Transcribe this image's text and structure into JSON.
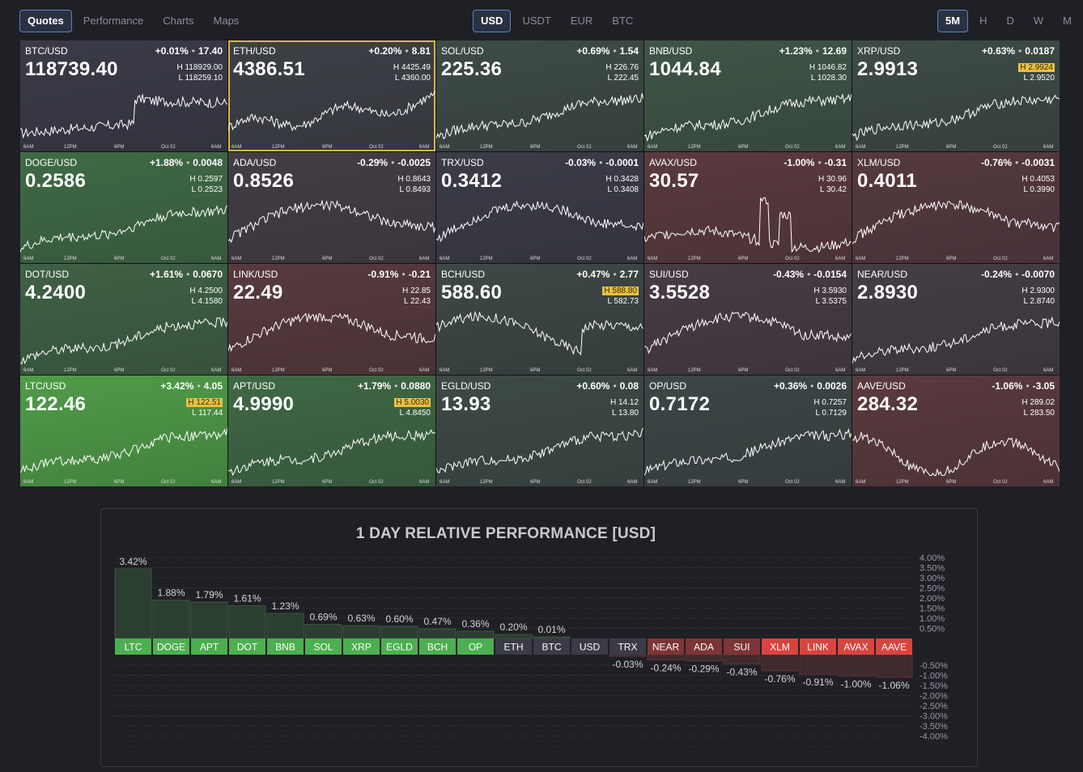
{
  "nav": {
    "views": [
      {
        "label": "Quotes",
        "active": true
      },
      {
        "label": "Performance",
        "active": false
      },
      {
        "label": "Charts",
        "active": false
      },
      {
        "label": "Maps",
        "active": false
      }
    ],
    "currencies": [
      {
        "label": "USD",
        "active": true
      },
      {
        "label": "USDT",
        "active": false
      },
      {
        "label": "EUR",
        "active": false
      },
      {
        "label": "BTC",
        "active": false
      }
    ],
    "timeframes": [
      {
        "label": "5M",
        "active": true
      },
      {
        "label": "H",
        "active": false
      },
      {
        "label": "D",
        "active": false
      },
      {
        "label": "W",
        "active": false
      },
      {
        "label": "M",
        "active": false
      }
    ]
  },
  "tile_axis_labels": [
    "6AM",
    "12PM",
    "6PM",
    "Oct 02",
    "6AM"
  ],
  "tiles": [
    {
      "symbol": "BTC/USD",
      "price": "118739.40",
      "change_pct": "+0.01%",
      "change": "17.40",
      "high": "118929.00",
      "low": "118259.10",
      "high_flag": false,
      "pct": 0.01,
      "bg": "#3a3b47",
      "selected": false,
      "shape": "btc"
    },
    {
      "symbol": "ETH/USD",
      "price": "4386.51",
      "change_pct": "+0.20%",
      "change": "8.81",
      "high": "4425.49",
      "low": "4360.00",
      "high_flag": false,
      "pct": 0.2,
      "bg": "#3d4046",
      "selected": true,
      "shape": "eth"
    },
    {
      "symbol": "SOL/USD",
      "price": "225.36",
      "change_pct": "+0.69%",
      "change": "1.54",
      "high": "226.76",
      "low": "222.45",
      "high_flag": false,
      "pct": 0.69,
      "bg": "#3e4b46",
      "selected": false,
      "shape": "rise"
    },
    {
      "symbol": "BNB/USD",
      "price": "1044.84",
      "change_pct": "+1.23%",
      "change": "12.69",
      "high": "1046.82",
      "low": "1028.30",
      "high_flag": false,
      "pct": 1.23,
      "bg": "#3f5546",
      "selected": false,
      "shape": "rise"
    },
    {
      "symbol": "XRP/USD",
      "price": "2.9913",
      "change_pct": "+0.63%",
      "change": "0.0187",
      "high": "2.9924",
      "low": "2.9520",
      "high_flag": true,
      "pct": 0.63,
      "bg": "#3e4b46",
      "selected": false,
      "shape": "rise"
    },
    {
      "symbol": "DOGE/USD",
      "price": "0.2586",
      "change_pct": "+1.88%",
      "change": "0.0048",
      "high": "0.2597",
      "low": "0.2523",
      "high_flag": false,
      "pct": 1.88,
      "bg": "#3f6a45",
      "selected": false,
      "shape": "rise"
    },
    {
      "symbol": "ADA/USD",
      "price": "0.8526",
      "change_pct": "-0.29%",
      "change": "-0.0025",
      "high": "0.8643",
      "low": "0.8493",
      "high_flag": false,
      "pct": -0.29,
      "bg": "#453d45",
      "selected": false,
      "shape": "hump"
    },
    {
      "symbol": "TRX/USD",
      "price": "0.3412",
      "change_pct": "-0.03%",
      "change": "-0.0001",
      "high": "0.3428",
      "low": "0.3408",
      "high_flag": false,
      "pct": -0.03,
      "bg": "#3b3c47",
      "selected": false,
      "shape": "hump"
    },
    {
      "symbol": "AVAX/USD",
      "price": "30.57",
      "change_pct": "-1.00%",
      "change": "-0.31",
      "high": "30.96",
      "low": "30.42",
      "high_flag": false,
      "pct": -1.0,
      "bg": "#5a3a3e",
      "selected": false,
      "shape": "spike"
    },
    {
      "symbol": "XLM/USD",
      "price": "0.4011",
      "change_pct": "-0.76%",
      "change": "-0.0031",
      "high": "0.4053",
      "low": "0.3990",
      "high_flag": false,
      "pct": -0.76,
      "bg": "#553a3f",
      "selected": false,
      "shape": "hump"
    },
    {
      "symbol": "DOT/USD",
      "price": "4.2400",
      "change_pct": "+1.61%",
      "change": "0.0670",
      "high": "4.2500",
      "low": "4.1580",
      "high_flag": false,
      "pct": 1.61,
      "bg": "#3f6145",
      "selected": false,
      "shape": "rise"
    },
    {
      "symbol": "LINK/USD",
      "price": "22.49",
      "change_pct": "-0.91%",
      "change": "-0.21",
      "high": "22.85",
      "low": "22.43",
      "high_flag": false,
      "pct": -0.91,
      "bg": "#573a3e",
      "selected": false,
      "shape": "hump"
    },
    {
      "symbol": "BCH/USD",
      "price": "588.60",
      "change_pct": "+0.47%",
      "change": "2.77",
      "high": "588.80",
      "low": "582.73",
      "high_flag": true,
      "pct": 0.47,
      "bg": "#3e4846",
      "selected": false,
      "shape": "bch"
    },
    {
      "symbol": "SUI/USD",
      "price": "3.5528",
      "change_pct": "-0.43%",
      "change": "-0.0154",
      "high": "3.5930",
      "low": "3.5375",
      "high_flag": false,
      "pct": -0.43,
      "bg": "#483c44",
      "selected": false,
      "shape": "hump"
    },
    {
      "symbol": "NEAR/USD",
      "price": "2.8930",
      "change_pct": "-0.24%",
      "change": "-0.0070",
      "high": "2.9300",
      "low": "2.8740",
      "high_flag": false,
      "pct": -0.24,
      "bg": "#443d45",
      "selected": false,
      "shape": "rise"
    },
    {
      "symbol": "LTC/USD",
      "price": "122.46",
      "change_pct": "+3.42%",
      "change": "4.05",
      "high": "122.51",
      "low": "117.44",
      "high_flag": true,
      "pct": 3.42,
      "bg": "#4f9c48",
      "selected": false,
      "shape": "rise"
    },
    {
      "symbol": "APT/USD",
      "price": "4.9990",
      "change_pct": "+1.79%",
      "change": "0.0880",
      "high": "5.0030",
      "low": "4.8450",
      "high_flag": true,
      "pct": 1.79,
      "bg": "#3f6845",
      "selected": false,
      "shape": "rise"
    },
    {
      "symbol": "EGLD/USD",
      "price": "13.93",
      "change_pct": "+0.60%",
      "change": "0.08",
      "high": "14.12",
      "low": "13.80",
      "high_flag": false,
      "pct": 0.6,
      "bg": "#3e4a46",
      "selected": false,
      "shape": "rise"
    },
    {
      "symbol": "OP/USD",
      "price": "0.7172",
      "change_pct": "+0.36%",
      "change": "0.0026",
      "high": "0.7257",
      "low": "0.7129",
      "high_flag": false,
      "pct": 0.36,
      "bg": "#3d4646",
      "selected": false,
      "shape": "rise"
    },
    {
      "symbol": "AAVE/USD",
      "price": "284.32",
      "change_pct": "-1.06%",
      "change": "-3.05",
      "high": "289.02",
      "low": "283.50",
      "high_flag": false,
      "pct": -1.06,
      "bg": "#5a3a3e",
      "selected": false,
      "shape": "aave"
    }
  ],
  "performance": {
    "title": "1 DAY RELATIVE PERFORMANCE  [USD]"
  },
  "chart_data": {
    "type": "bar",
    "title": "1 DAY RELATIVE PERFORMANCE  [USD]",
    "categories": [
      "LTC",
      "DOGE",
      "APT",
      "DOT",
      "BNB",
      "SOL",
      "XRP",
      "EGLD",
      "BCH",
      "OP",
      "ETH",
      "BTC",
      "USD",
      "TRX",
      "NEAR",
      "ADA",
      "SUI",
      "XLM",
      "LINK",
      "AVAX",
      "AAVE"
    ],
    "values": [
      3.42,
      1.88,
      1.79,
      1.61,
      1.23,
      0.69,
      0.63,
      0.6,
      0.47,
      0.36,
      0.2,
      0.01,
      0,
      -0.03,
      -0.24,
      -0.29,
      -0.43,
      -0.76,
      -0.91,
      -1.0,
      -1.06
    ],
    "value_labels": [
      "3.42%",
      "1.88%",
      "1.79%",
      "1.61%",
      "1.23%",
      "0.69%",
      "0.63%",
      "0.60%",
      "0.47%",
      "0.36%",
      "0.20%",
      "0.01%",
      "",
      "-0.03%",
      "-0.24%",
      "-0.29%",
      "-0.43%",
      "-0.76%",
      "-0.91%",
      "-1.00%",
      "-1.06%"
    ],
    "ylim": [
      -4,
      4
    ],
    "positive_ticks": [
      "4.00%",
      "3.50%",
      "3.00%",
      "2.50%",
      "2.00%",
      "1.50%",
      "1.00%",
      "0.50%"
    ],
    "negative_ticks": [
      "-0.50%",
      "-1.00%",
      "-1.50%",
      "-2.00%",
      "-2.50%",
      "-3.00%",
      "-3.50%",
      "-4.00%"
    ],
    "grid": true,
    "colors": {
      "pos_label_bg": "#4caf50",
      "neg_label_bg": "#d9443f",
      "neutral_label_bg": "#3a3b47",
      "pos_bar": "#2c3e2f",
      "neg_bar": "#3f2b2e"
    }
  }
}
